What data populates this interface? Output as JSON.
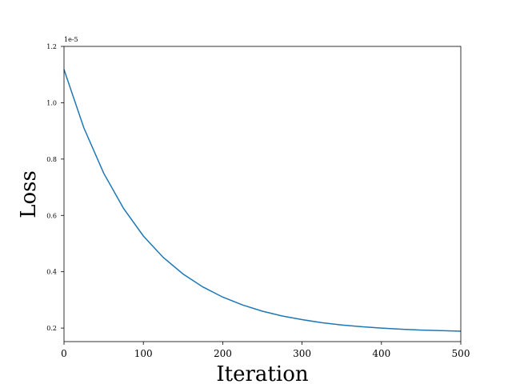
{
  "chart_data": {
    "type": "line",
    "xlabel": "Iteration",
    "ylabel": "Loss",
    "y_offset_label": "1e-5",
    "x": [
      0,
      25,
      50,
      75,
      100,
      125,
      150,
      175,
      200,
      225,
      250,
      275,
      300,
      325,
      350,
      375,
      400,
      425,
      450,
      475,
      500
    ],
    "values": [
      1.118,
      0.911,
      0.75,
      0.625,
      0.527,
      0.451,
      0.392,
      0.346,
      0.31,
      0.282,
      0.26,
      0.243,
      0.23,
      0.219,
      0.211,
      0.205,
      0.2,
      0.196,
      0.193,
      0.191,
      0.189
    ],
    "color": "#1f77b4",
    "xlim": [
      0,
      500
    ],
    "xticks": [
      0,
      100,
      200,
      300,
      400,
      500
    ],
    "ylim": [
      0.152,
      1.2
    ],
    "yticks": [
      0.2,
      0.4,
      0.6,
      0.8,
      {
        "value": 1,
        "label": "1.0"
      },
      1.2
    ],
    "grid": false
  }
}
